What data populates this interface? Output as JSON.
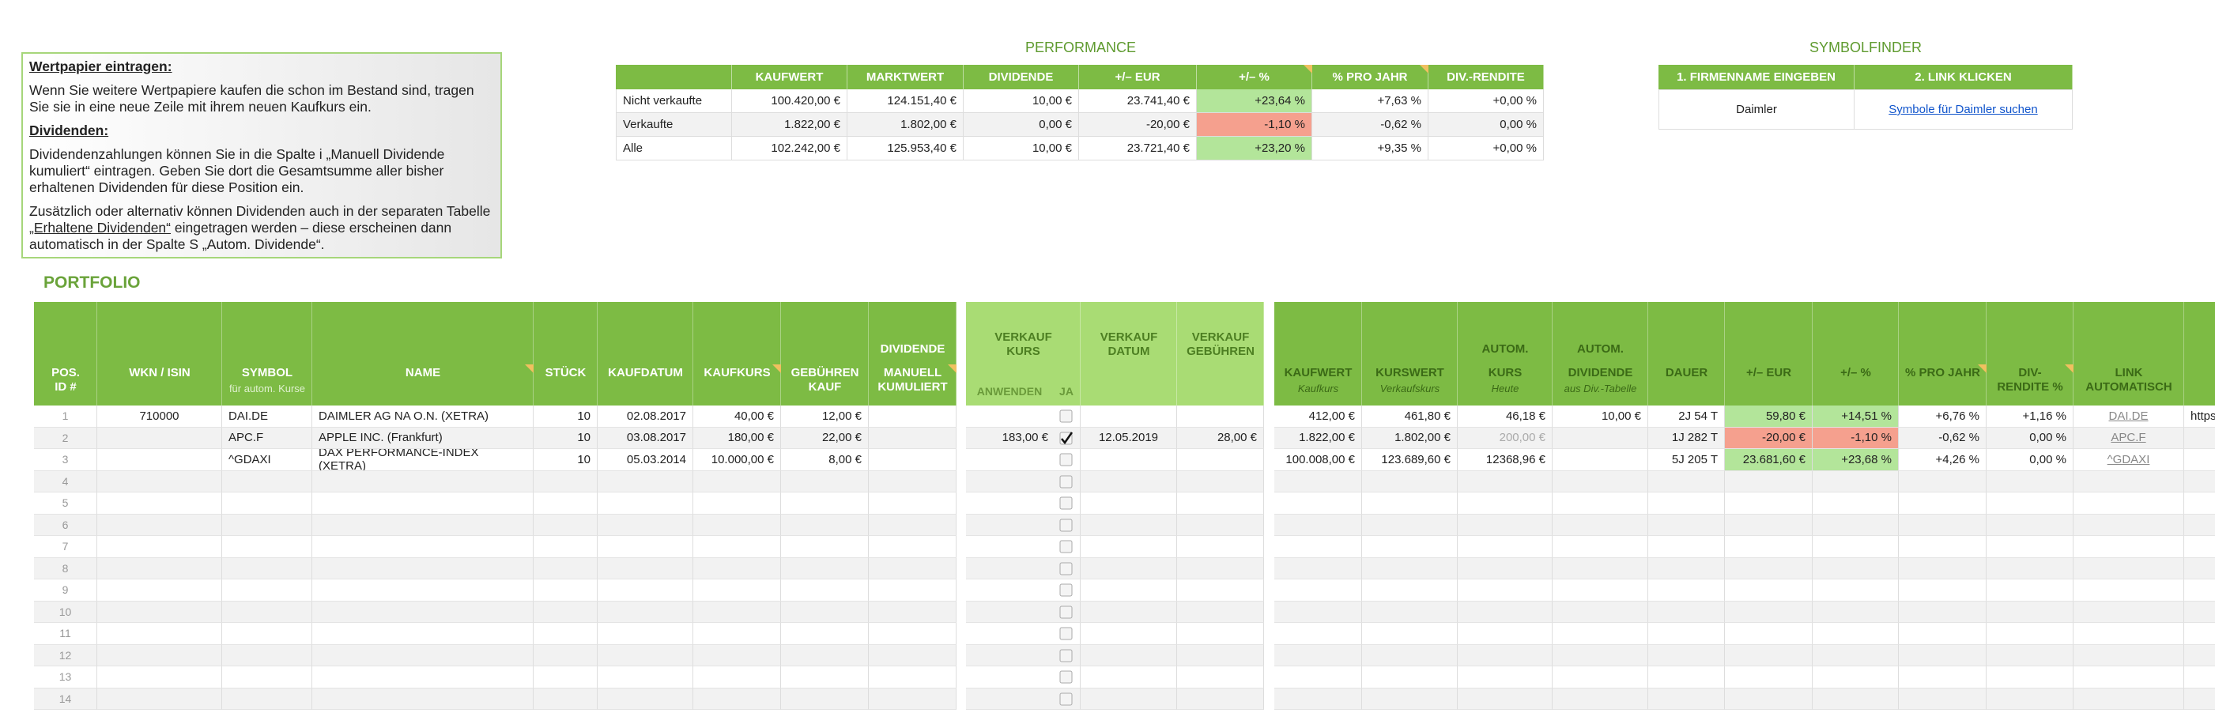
{
  "info": {
    "heading1": "Wertpapier eintragen:",
    "text1": "Wenn Sie weitere Wertpapiere kaufen die schon im Bestand sind, tragen Sie sie in eine neue Zeile mit ihrem neuen Kaufkurs ein.",
    "heading2": "Dividenden:",
    "text2": "Dividendenzahlungen können Sie in die Spalte i „Manuell Dividende kumuliert“ eintragen. Geben Sie dort die Gesamtsumme aller bisher erhaltenen Dividenden für diese Position ein.",
    "text3a": "Zusätzlich oder alternativ können Dividenden auch in der separaten Tabelle ",
    "text3_link": "„Erhaltene Dividenden“",
    "text3b": " eingetragen werden – diese erscheinen dann automatisch in der Spalte S „Autom. Dividende“."
  },
  "performance": {
    "title": "PERFORMANCE",
    "columns": [
      "KAUFWERT",
      "MARKTWERT",
      "DIVIDENDE",
      "+/–  EUR",
      "+/–  %",
      "% PRO JAHR",
      "DIV.-RENDITE"
    ],
    "rows": [
      {
        "label": "Nicht verkaufte",
        "values": [
          "100.420,00 €",
          "124.151,40 €",
          "10,00 €",
          "23.741,40 €",
          "+23,64 %",
          "+7,63 %",
          "+0,00 %"
        ]
      },
      {
        "label": "Verkaufte",
        "values": [
          "1.822,00 €",
          "1.802,00 €",
          "0,00 €",
          "-20,00 €",
          "-1,10 %",
          "-0,62 %",
          "0,00 %"
        ]
      },
      {
        "label": "Alle",
        "values": [
          "102.242,00 €",
          "125.953,40 €",
          "10,00 €",
          "23.721,40 €",
          "+23,20 %",
          "+9,35 %",
          "+0,00 %"
        ]
      }
    ]
  },
  "symbolfinder": {
    "title": "SYMBOLFINDER",
    "columns": [
      "1. FIRMENNAME EINGEBEN",
      "2. LINK KLICKEN"
    ],
    "row": [
      "Daimler",
      "Symbole für Daimler suchen"
    ]
  },
  "portfolio": {
    "title": "PORTFOLIO",
    "columns": [
      {
        "label": "POS.\nID #"
      },
      {
        "label": "WKN / ISIN"
      },
      {
        "label": "SYMBOL",
        "sub": "für autom. Kurse"
      },
      {
        "label": "NAME"
      },
      {
        "label": "STÜCK"
      },
      {
        "label": "KAUFDATUM"
      },
      {
        "label": "KAUFKURS"
      },
      {
        "label": "GEBÜHREN\nKAUF"
      },
      {
        "top": "DIVIDENDE",
        "label": "MANUELL\nKUMULIERT"
      },
      {
        "label": "VERKAUF\nKURS",
        "sub": "ANWENDEN",
        "sub2": "JA"
      },
      {
        "label": "VERKAUF\nDATUM"
      },
      {
        "label": "VERKAUF\nGEBÜHREN"
      },
      {
        "label": "KAUFWERT",
        "sub": "Kaufkurs"
      },
      {
        "label": "KURSWERT",
        "sub": "Verkaufskurs"
      },
      {
        "top": "AUTOM.",
        "label": "KURS",
        "sub": "Heute"
      },
      {
        "top": "AUTOM.",
        "label": "DIVIDENDE",
        "sub": "aus Div.-Tabelle"
      },
      {
        "label": "DAUER"
      },
      {
        "label": "+/–  EUR"
      },
      {
        "label": "+/–  %"
      },
      {
        "label": "% PRO JAHR"
      },
      {
        "label": "DIV-\nRENDITE %"
      },
      {
        "label": "LINK\nAUTOMATISCH"
      }
    ],
    "rows": [
      {
        "ja": false,
        "cells": [
          1,
          "710000",
          "DAI.DE",
          "DAIMLER AG NA O.N. (XETRA)",
          10,
          "02.08.2017",
          "40,00 €",
          "12,00 €",
          null,
          null,
          null,
          null,
          "412,00 €",
          "461,80 €",
          "46,18 €",
          "10,00 €",
          "2J  54 T",
          "59,80 €",
          "+14,51 %",
          "+6,76 %",
          "+1,16 %",
          "DAI.DE",
          "https://"
        ]
      },
      {
        "ja": true,
        "muted": [
          14
        ],
        "cells": [
          2,
          null,
          "APC.F",
          "APPLE INC. (Frankfurt)",
          10,
          "03.08.2017",
          "180,00 €",
          "22,00 €",
          null,
          "183,00 €",
          "12.05.2019",
          "28,00 €",
          "1.822,00 €",
          "1.802,00 €",
          "200,00 €",
          null,
          "1J  282 T",
          "-20,00 €",
          "-1,10 %",
          "-0,62 %",
          "0,00 %",
          "APC.F",
          null
        ]
      },
      {
        "ja": false,
        "cells": [
          3,
          null,
          "^GDAXI",
          "DAX PERFORMANCE-INDEX (XETRA)",
          10,
          "05.03.2014",
          "10.000,00 €",
          "8,00 €",
          null,
          null,
          null,
          null,
          "100.008,00 €",
          "123.689,60 €",
          "12368,96 €",
          null,
          "5J  205 T",
          "23.681,60 €",
          "+23,68 %",
          "+4,26 %",
          "0,00 %",
          "^GDAXI",
          null
        ]
      },
      {
        "ja": false,
        "cells": [
          4
        ]
      },
      {
        "ja": false,
        "cells": [
          5
        ]
      },
      {
        "ja": false,
        "cells": [
          6
        ]
      },
      {
        "ja": false,
        "cells": [
          7
        ]
      },
      {
        "ja": false,
        "cells": [
          8
        ]
      },
      {
        "ja": false,
        "cells": [
          9
        ]
      },
      {
        "ja": false,
        "cells": [
          10
        ]
      },
      {
        "ja": false,
        "cells": [
          11
        ]
      },
      {
        "ja": false,
        "cells": [
          12
        ]
      },
      {
        "ja": false,
        "cells": [
          13
        ]
      },
      {
        "ja": false,
        "cells": [
          14
        ]
      }
    ]
  }
}
